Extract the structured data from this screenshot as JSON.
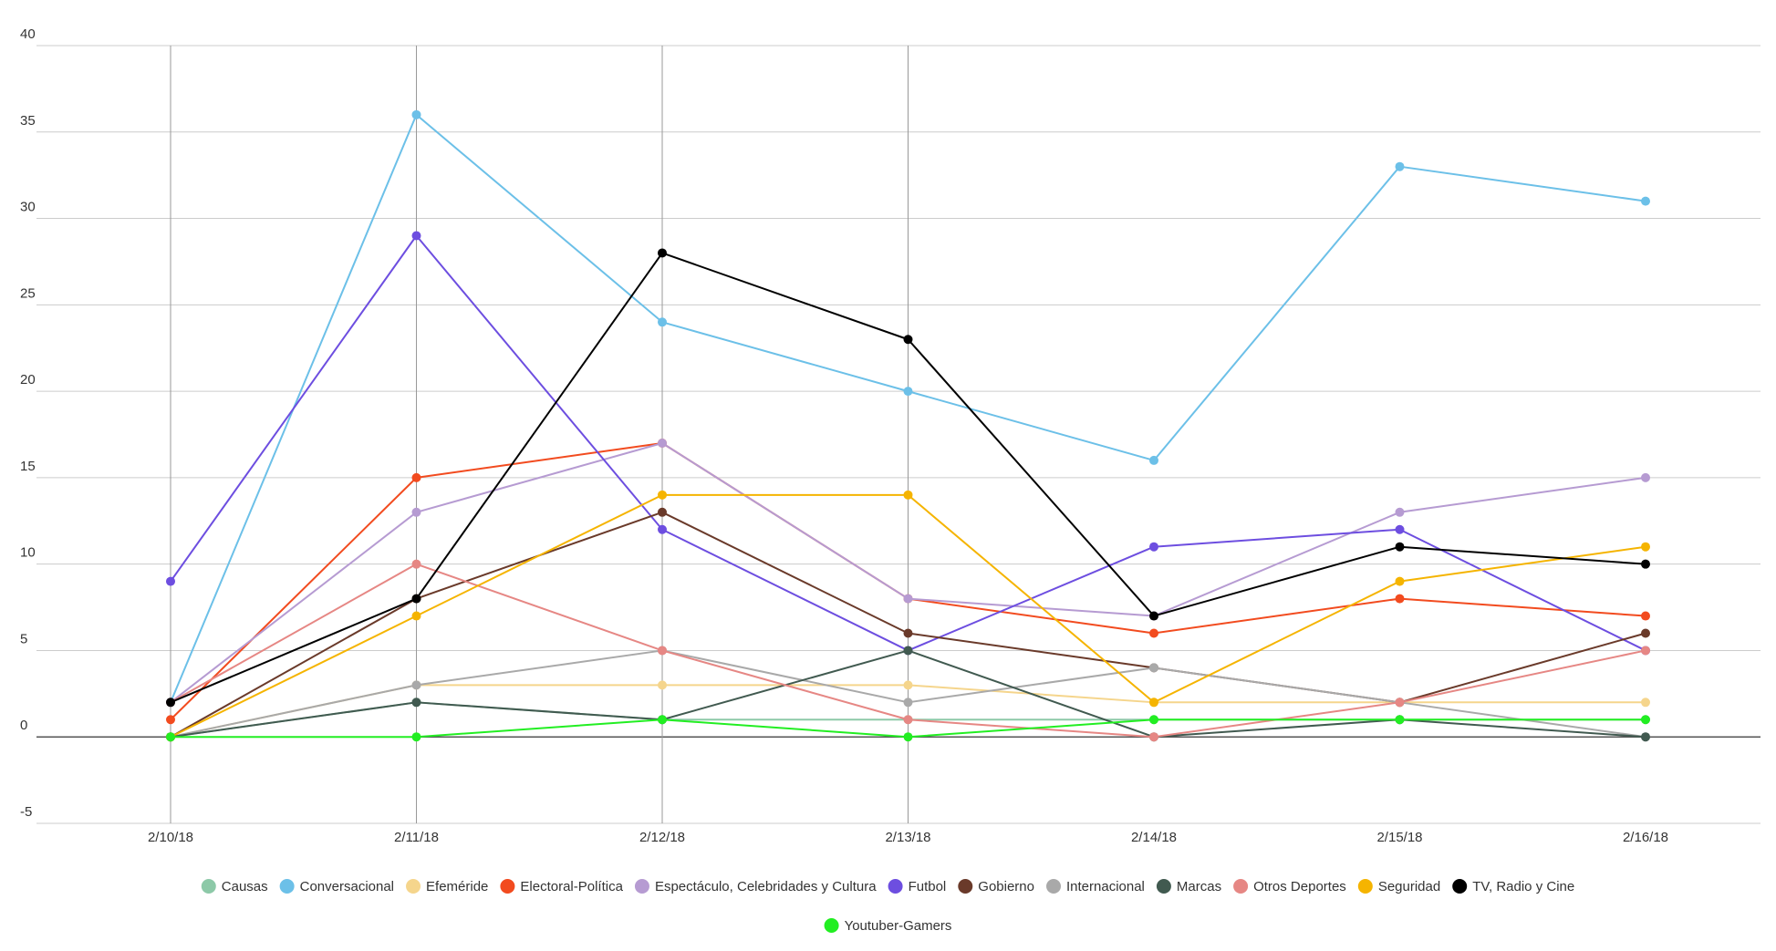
{
  "chart_data": {
    "type": "line",
    "x": [
      "2/10/18",
      "2/11/18",
      "2/12/18",
      "2/13/18",
      "2/14/18",
      "2/15/18",
      "2/16/18"
    ],
    "ylim": [
      -5,
      40
    ],
    "yticks": [
      "-5",
      "0",
      "5",
      "10",
      "15",
      "20",
      "25",
      "30",
      "35",
      "40"
    ],
    "grid": true,
    "legend_position": "bottom",
    "series": [
      {
        "name": "Causas",
        "color": "#8dc9a8",
        "values": [
          0,
          2,
          1,
          1,
          1,
          1,
          1
        ]
      },
      {
        "name": "Conversacional",
        "color": "#6cc0e8",
        "values": [
          2,
          36,
          24,
          20,
          16,
          33,
          31
        ]
      },
      {
        "name": "Efeméride",
        "color": "#f5d58c",
        "values": [
          0,
          3,
          3,
          3,
          2,
          2,
          2
        ]
      },
      {
        "name": "Electoral-Política",
        "color": "#f24b1f",
        "values": [
          1,
          15,
          17,
          8,
          6,
          8,
          7
        ]
      },
      {
        "name": "Espectáculo, Celebridades y Cultura",
        "color": "#b69bd2",
        "values": [
          2,
          13,
          17,
          8,
          7,
          13,
          15
        ]
      },
      {
        "name": "Futbol",
        "color": "#6d4ee0",
        "values": [
          9,
          29,
          12,
          5,
          11,
          12,
          5
        ]
      },
      {
        "name": "Gobierno",
        "color": "#6a3a2a",
        "values": [
          0,
          8,
          13,
          6,
          4,
          2,
          6
        ]
      },
      {
        "name": "Internacional",
        "color": "#a9a9a9",
        "values": [
          0,
          3,
          5,
          2,
          4,
          2,
          0
        ]
      },
      {
        "name": "Marcas",
        "color": "#415a50",
        "values": [
          0,
          2,
          1,
          5,
          0,
          1,
          0
        ]
      },
      {
        "name": "Otros Deportes",
        "color": "#e68784",
        "values": [
          2,
          10,
          5,
          1,
          0,
          2,
          5
        ]
      },
      {
        "name": "Seguridad",
        "color": "#f5b400",
        "values": [
          0,
          7,
          14,
          14,
          2,
          9,
          11
        ]
      },
      {
        "name": "TV, Radio y Cine",
        "color": "#000000",
        "values": [
          2,
          8,
          28,
          23,
          7,
          11,
          10
        ]
      },
      {
        "name": "Youtuber-Gamers",
        "color": "#22ee22",
        "values": [
          0,
          0,
          1,
          0,
          1,
          1,
          1
        ]
      }
    ]
  }
}
